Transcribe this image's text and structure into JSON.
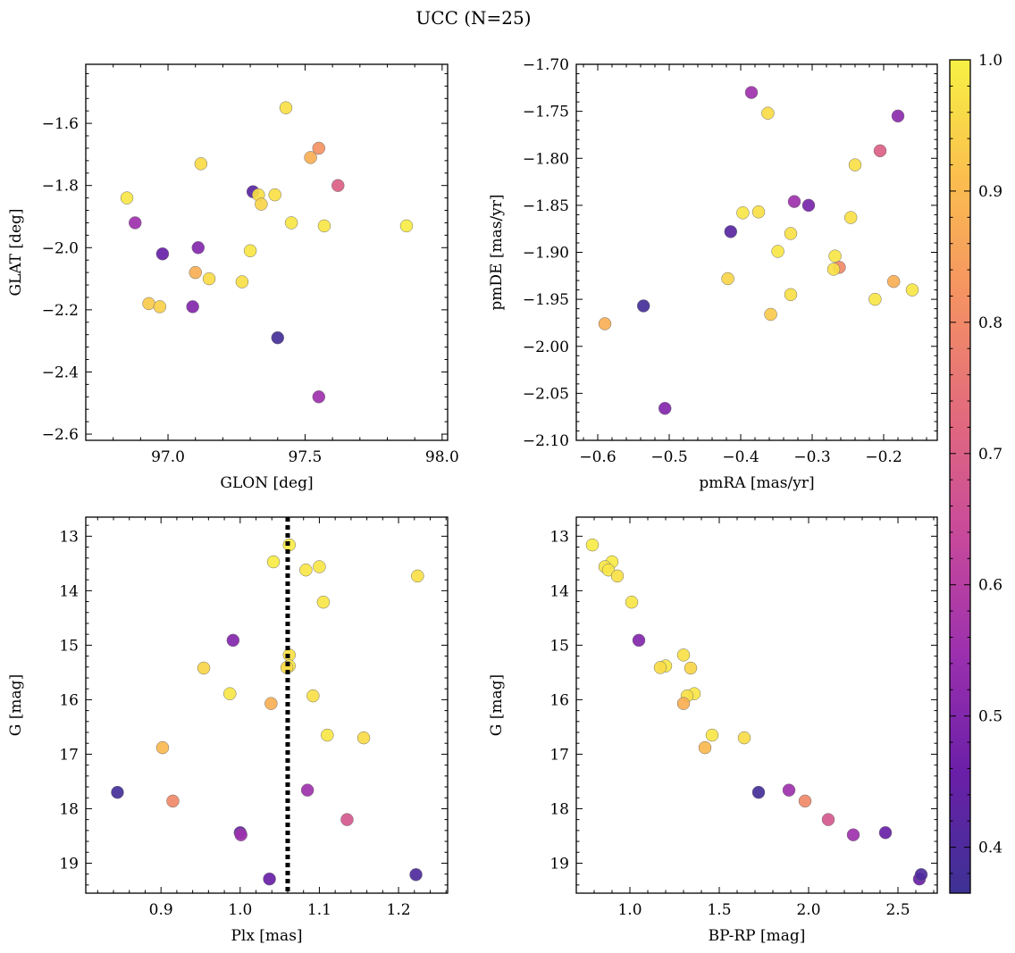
{
  "figure": {
    "title": "UCC (N=25)"
  },
  "chart_data": [
    {
      "type": "scatter",
      "xlabel": "GLON [deg]",
      "ylabel": "GLAT [deg]",
      "xlim": [
        96.7,
        98.02
      ],
      "ylim": [
        -2.62,
        -1.41
      ],
      "xticks": [
        97.0,
        97.5,
        98.0
      ],
      "xtick_labels": [
        "97.0",
        "97.5",
        "98.0"
      ],
      "yticks": [
        -2.6,
        -2.4,
        -2.2,
        -2.0,
        -1.8,
        -1.6
      ],
      "ytick_labels": [
        "−2.6",
        "−2.4",
        "−2.2",
        "−2.0",
        "−1.8",
        "−1.6"
      ],
      "y_inverted": false,
      "points": [
        {
          "x": 97.43,
          "y": -1.55,
          "c": 0.97
        },
        {
          "x": 97.55,
          "y": -1.68,
          "c": 0.82
        },
        {
          "x": 97.52,
          "y": -1.71,
          "c": 0.88
        },
        {
          "x": 97.12,
          "y": -1.73,
          "c": 0.96
        },
        {
          "x": 97.62,
          "y": -1.8,
          "c": 0.7
        },
        {
          "x": 96.85,
          "y": -1.84,
          "c": 0.98
        },
        {
          "x": 97.31,
          "y": -1.82,
          "c": 0.42
        },
        {
          "x": 97.33,
          "y": -1.83,
          "c": 0.97
        },
        {
          "x": 97.39,
          "y": -1.83,
          "c": 0.97
        },
        {
          "x": 97.34,
          "y": -1.86,
          "c": 0.95
        },
        {
          "x": 97.45,
          "y": -1.92,
          "c": 0.98
        },
        {
          "x": 97.57,
          "y": -1.93,
          "c": 0.98
        },
        {
          "x": 97.87,
          "y": -1.93,
          "c": 0.99
        },
        {
          "x": 96.88,
          "y": -1.92,
          "c": 0.55
        },
        {
          "x": 97.11,
          "y": -2.0,
          "c": 0.5
        },
        {
          "x": 96.98,
          "y": -2.02,
          "c": 0.45
        },
        {
          "x": 97.3,
          "y": -2.01,
          "c": 0.98
        },
        {
          "x": 97.1,
          "y": -2.08,
          "c": 0.88
        },
        {
          "x": 97.15,
          "y": -2.1,
          "c": 0.96
        },
        {
          "x": 97.27,
          "y": -2.11,
          "c": 0.97
        },
        {
          "x": 96.93,
          "y": -2.18,
          "c": 0.93
        },
        {
          "x": 96.97,
          "y": -2.19,
          "c": 0.94
        },
        {
          "x": 97.09,
          "y": -2.19,
          "c": 0.5
        },
        {
          "x": 97.4,
          "y": -2.29,
          "c": 0.38
        },
        {
          "x": 97.55,
          "y": -2.48,
          "c": 0.55
        }
      ]
    },
    {
      "type": "scatter",
      "xlabel": "pmRA [mas/yr]",
      "ylabel": "pmDE [mas/yr]",
      "xlim": [
        -0.63,
        -0.125
      ],
      "ylim": [
        -2.1,
        -1.7
      ],
      "xticks": [
        -0.6,
        -0.5,
        -0.4,
        -0.3,
        -0.2
      ],
      "xtick_labels": [
        "−0.6",
        "−0.5",
        "−0.4",
        "−0.3",
        "−0.2"
      ],
      "yticks": [
        -2.1,
        -2.05,
        -2.0,
        -1.95,
        -1.9,
        -1.85,
        -1.8,
        -1.75,
        -1.7
      ],
      "ytick_labels": [
        "−2.10",
        "−2.05",
        "−2.00",
        "−1.95",
        "−1.90",
        "−1.85",
        "−1.80",
        "−1.75",
        "−1.70"
      ],
      "y_inverted": false,
      "points": [
        {
          "x": -0.385,
          "y": -1.73,
          "c": 0.55
        },
        {
          "x": -0.362,
          "y": -1.752,
          "c": 0.96
        },
        {
          "x": -0.18,
          "y": -1.755,
          "c": 0.52
        },
        {
          "x": -0.205,
          "y": -1.792,
          "c": 0.7
        },
        {
          "x": -0.24,
          "y": -1.807,
          "c": 0.97
        },
        {
          "x": -0.325,
          "y": -1.846,
          "c": 0.55
        },
        {
          "x": -0.305,
          "y": -1.85,
          "c": 0.48
        },
        {
          "x": -0.397,
          "y": -1.858,
          "c": 0.98
        },
        {
          "x": -0.375,
          "y": -1.857,
          "c": 0.97
        },
        {
          "x": -0.246,
          "y": -1.863,
          "c": 0.97
        },
        {
          "x": -0.414,
          "y": -1.878,
          "c": 0.42
        },
        {
          "x": -0.33,
          "y": -1.88,
          "c": 0.97
        },
        {
          "x": -0.348,
          "y": -1.899,
          "c": 0.98
        },
        {
          "x": -0.268,
          "y": -1.904,
          "c": 0.98
        },
        {
          "x": -0.262,
          "y": -1.916,
          "c": 0.8
        },
        {
          "x": -0.27,
          "y": -1.918,
          "c": 0.97
        },
        {
          "x": -0.418,
          "y": -1.928,
          "c": 0.95
        },
        {
          "x": -0.186,
          "y": -1.931,
          "c": 0.88
        },
        {
          "x": -0.16,
          "y": -1.94,
          "c": 0.98
        },
        {
          "x": -0.33,
          "y": -1.945,
          "c": 0.97
        },
        {
          "x": -0.212,
          "y": -1.95,
          "c": 0.98
        },
        {
          "x": -0.536,
          "y": -1.957,
          "c": 0.38
        },
        {
          "x": -0.358,
          "y": -1.966,
          "c": 0.93
        },
        {
          "x": -0.59,
          "y": -1.976,
          "c": 0.88
        },
        {
          "x": -0.506,
          "y": -2.066,
          "c": 0.5
        }
      ]
    },
    {
      "type": "scatter",
      "xlabel": "Plx [mas]",
      "ylabel": "G [mag]",
      "xlim": [
        0.805,
        1.262
      ],
      "ylim": [
        12.65,
        19.55
      ],
      "xticks": [
        0.9,
        1.0,
        1.1,
        1.2
      ],
      "xtick_labels": [
        "0.9",
        "1.0",
        "1.1",
        "1.2"
      ],
      "yticks": [
        13,
        14,
        15,
        16,
        17,
        18,
        19
      ],
      "ytick_labels": [
        "13",
        "14",
        "15",
        "16",
        "17",
        "18",
        "19"
      ],
      "y_inverted": true,
      "vline": 1.06,
      "points": [
        {
          "x": 1.062,
          "y": 13.16,
          "c": 0.99
        },
        {
          "x": 1.042,
          "y": 13.47,
          "c": 0.99
        },
        {
          "x": 1.1,
          "y": 13.56,
          "c": 0.98
        },
        {
          "x": 1.083,
          "y": 13.62,
          "c": 0.98
        },
        {
          "x": 1.224,
          "y": 13.73,
          "c": 0.97
        },
        {
          "x": 1.105,
          "y": 14.21,
          "c": 0.98
        },
        {
          "x": 0.991,
          "y": 14.91,
          "c": 0.5
        },
        {
          "x": 1.062,
          "y": 15.18,
          "c": 0.97
        },
        {
          "x": 1.062,
          "y": 15.38,
          "c": 0.98
        },
        {
          "x": 1.059,
          "y": 15.41,
          "c": 0.96
        },
        {
          "x": 0.954,
          "y": 15.42,
          "c": 0.95
        },
        {
          "x": 0.987,
          "y": 15.89,
          "c": 0.98
        },
        {
          "x": 1.092,
          "y": 15.93,
          "c": 0.97
        },
        {
          "x": 1.039,
          "y": 16.07,
          "c": 0.88
        },
        {
          "x": 1.11,
          "y": 16.65,
          "c": 0.98
        },
        {
          "x": 1.156,
          "y": 16.7,
          "c": 0.96
        },
        {
          "x": 0.902,
          "y": 16.88,
          "c": 0.9
        },
        {
          "x": 0.845,
          "y": 17.7,
          "c": 0.38
        },
        {
          "x": 1.085,
          "y": 17.66,
          "c": 0.55
        },
        {
          "x": 0.915,
          "y": 17.86,
          "c": 0.8
        },
        {
          "x": 1.135,
          "y": 18.2,
          "c": 0.68
        },
        {
          "x": 1.0,
          "y": 18.44,
          "c": 0.45
        },
        {
          "x": 1.001,
          "y": 18.48,
          "c": 0.55
        },
        {
          "x": 1.037,
          "y": 19.29,
          "c": 0.45
        },
        {
          "x": 1.222,
          "y": 19.21,
          "c": 0.4
        }
      ]
    },
    {
      "type": "scatter",
      "xlabel": "BP-RP [mag]",
      "ylabel": "G [mag]",
      "xlim": [
        0.7,
        2.72
      ],
      "ylim": [
        12.65,
        19.55
      ],
      "xticks": [
        1.0,
        1.5,
        2.0,
        2.5
      ],
      "xtick_labels": [
        "1.0",
        "1.5",
        "2.0",
        "2.5"
      ],
      "yticks": [
        13,
        14,
        15,
        16,
        17,
        18,
        19
      ],
      "ytick_labels": [
        "13",
        "14",
        "15",
        "16",
        "17",
        "18",
        "19"
      ],
      "y_inverted": true,
      "points": [
        {
          "x": 0.79,
          "y": 13.16,
          "c": 0.99
        },
        {
          "x": 0.9,
          "y": 13.47,
          "c": 0.99
        },
        {
          "x": 0.86,
          "y": 13.56,
          "c": 0.98
        },
        {
          "x": 0.88,
          "y": 13.62,
          "c": 0.98
        },
        {
          "x": 0.93,
          "y": 13.73,
          "c": 0.97
        },
        {
          "x": 1.01,
          "y": 14.21,
          "c": 0.98
        },
        {
          "x": 1.05,
          "y": 14.91,
          "c": 0.5
        },
        {
          "x": 1.3,
          "y": 15.18,
          "c": 0.97
        },
        {
          "x": 1.2,
          "y": 15.38,
          "c": 0.98
        },
        {
          "x": 1.17,
          "y": 15.41,
          "c": 0.96
        },
        {
          "x": 1.34,
          "y": 15.42,
          "c": 0.95
        },
        {
          "x": 1.36,
          "y": 15.89,
          "c": 0.98
        },
        {
          "x": 1.32,
          "y": 15.93,
          "c": 0.97
        },
        {
          "x": 1.3,
          "y": 16.07,
          "c": 0.88
        },
        {
          "x": 1.46,
          "y": 16.65,
          "c": 0.98
        },
        {
          "x": 1.64,
          "y": 16.7,
          "c": 0.96
        },
        {
          "x": 1.42,
          "y": 16.88,
          "c": 0.9
        },
        {
          "x": 1.72,
          "y": 17.7,
          "c": 0.38
        },
        {
          "x": 1.89,
          "y": 17.66,
          "c": 0.55
        },
        {
          "x": 1.98,
          "y": 17.86,
          "c": 0.8
        },
        {
          "x": 2.11,
          "y": 18.2,
          "c": 0.68
        },
        {
          "x": 2.43,
          "y": 18.44,
          "c": 0.45
        },
        {
          "x": 2.25,
          "y": 18.48,
          "c": 0.55
        },
        {
          "x": 2.62,
          "y": 19.29,
          "c": 0.45
        },
        {
          "x": 2.63,
          "y": 19.21,
          "c": 0.4
        }
      ]
    }
  ],
  "colorbar": {
    "colormap": "plasma",
    "range": [
      0.365,
      1.0
    ],
    "ticks": [
      0.4,
      0.5,
      0.6,
      0.7,
      0.8,
      0.9,
      1.0
    ],
    "tick_labels": [
      "0.4",
      "0.5",
      "0.6",
      "0.7",
      "0.8",
      "0.9",
      "1.0"
    ],
    "stops": [
      "#3d3294",
      "#6a1fa8",
      "#9b30ae",
      "#c7499b",
      "#e26a7d",
      "#f49163",
      "#fbbe4e",
      "#f7f144"
    ]
  }
}
